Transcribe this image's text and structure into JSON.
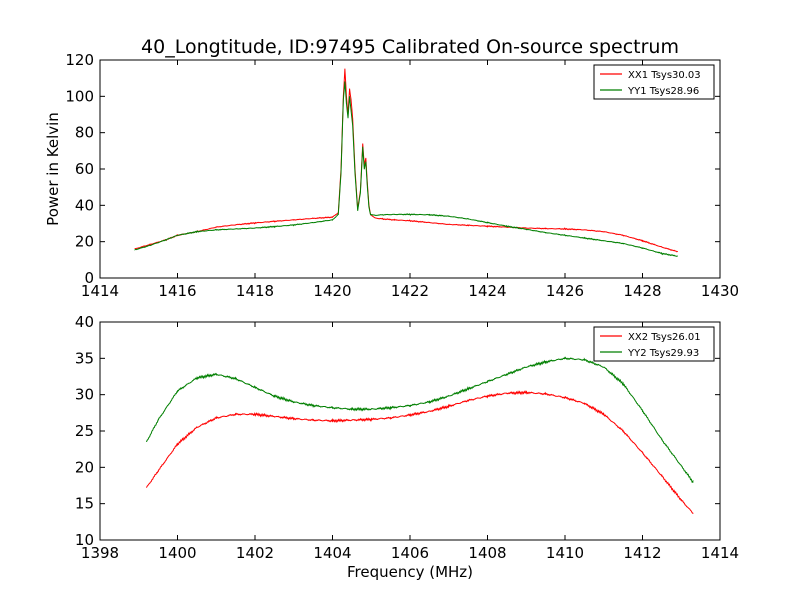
{
  "colors": {
    "xx": "#ff0000",
    "yy": "#007f00",
    "frame": "#000000",
    "background": "#ffffff"
  },
  "chart_data": [
    {
      "type": "line",
      "title": "40_Longtitude, ID:97495 Calibrated On-source spectrum",
      "xlabel": "",
      "ylabel": "Power in Kelvin",
      "xlim": [
        1414,
        1430
      ],
      "ylim": [
        0,
        120
      ],
      "xticks": [
        "1414",
        "1416",
        "1418",
        "1420",
        "1422",
        "1424",
        "1426",
        "1428",
        "1430"
      ],
      "yticks": [
        "0",
        "20",
        "40",
        "60",
        "80",
        "100",
        "120"
      ],
      "grid": false,
      "legend_position": "top-right",
      "series": [
        {
          "name": "XX1 Tsys30.03",
          "color": "#ff0000",
          "x": [
            1414.9,
            1415.3,
            1415.7,
            1416.0,
            1416.5,
            1417.0,
            1417.5,
            1418.0,
            1418.5,
            1419.0,
            1419.5,
            1420.0,
            1420.15,
            1420.22,
            1420.28,
            1420.32,
            1420.36,
            1420.4,
            1420.44,
            1420.48,
            1420.52,
            1420.58,
            1420.65,
            1420.72,
            1420.78,
            1420.82,
            1420.86,
            1420.9,
            1420.94,
            1420.98,
            1421.1,
            1421.3,
            1421.6,
            1422.0,
            1422.5,
            1423.0,
            1423.5,
            1424.0,
            1424.5,
            1425.0,
            1425.5,
            1426.0,
            1426.5,
            1427.0,
            1427.5,
            1428.0,
            1428.5,
            1428.9
          ],
          "y": [
            16,
            18.5,
            21,
            23.5,
            25.5,
            28,
            29.3,
            30.3,
            31.2,
            32,
            32.8,
            33.5,
            36,
            60,
            100,
            115,
            100,
            90,
            104,
            98,
            88,
            60,
            38,
            48,
            74,
            62,
            66,
            52,
            40,
            35,
            33,
            32.5,
            32,
            31.5,
            30.5,
            29.5,
            29,
            28.5,
            28,
            27.5,
            27.2,
            27,
            26.5,
            25.5,
            23.5,
            20.5,
            17,
            14.5
          ]
        },
        {
          "name": "YY1 Tsys28.96",
          "color": "#007f00",
          "x": [
            1414.9,
            1415.3,
            1415.7,
            1416.0,
            1416.5,
            1417.0,
            1417.5,
            1418.0,
            1418.5,
            1419.0,
            1419.5,
            1420.0,
            1420.15,
            1420.22,
            1420.28,
            1420.32,
            1420.36,
            1420.4,
            1420.44,
            1420.48,
            1420.52,
            1420.58,
            1420.65,
            1420.72,
            1420.78,
            1420.82,
            1420.86,
            1420.9,
            1420.94,
            1420.98,
            1421.1,
            1421.3,
            1421.6,
            1422.0,
            1422.5,
            1423.0,
            1423.5,
            1424.0,
            1424.5,
            1425.0,
            1425.5,
            1426.0,
            1426.5,
            1427.0,
            1427.5,
            1428.0,
            1428.5,
            1428.9
          ],
          "y": [
            15.5,
            18,
            21,
            23.5,
            25.5,
            26.5,
            27,
            27.5,
            28.3,
            29.2,
            30.5,
            32,
            35,
            58,
            98,
            108,
            96,
            88,
            100,
            92,
            84,
            58,
            37,
            47,
            72,
            60,
            64,
            50,
            39,
            35,
            34.5,
            34.8,
            35,
            35,
            34.8,
            34,
            32.5,
            30.5,
            28.5,
            26.8,
            25,
            23.5,
            22,
            20.5,
            19,
            16.5,
            13.5,
            12
          ]
        }
      ]
    },
    {
      "type": "line",
      "title": "",
      "xlabel": "Frequency (MHz)",
      "ylabel": "",
      "xlim": [
        1398,
        1414
      ],
      "ylim": [
        10,
        40
      ],
      "xticks": [
        "1398",
        "1400",
        "1402",
        "1404",
        "1406",
        "1408",
        "1410",
        "1412",
        "1414"
      ],
      "yticks": [
        "10",
        "15",
        "20",
        "25",
        "30",
        "35",
        "40"
      ],
      "grid": false,
      "legend_position": "top-right",
      "series": [
        {
          "name": "XX2 Tsys26.01",
          "color": "#ff0000",
          "x": [
            1399.2,
            1399.5,
            1400.0,
            1400.5,
            1401.0,
            1401.5,
            1402.0,
            1402.5,
            1403.0,
            1403.5,
            1404.0,
            1404.5,
            1405.0,
            1405.5,
            1406.0,
            1406.5,
            1407.0,
            1407.5,
            1408.0,
            1408.5,
            1409.0,
            1409.5,
            1410.0,
            1410.5,
            1411.0,
            1411.5,
            1412.0,
            1412.5,
            1413.0,
            1413.3
          ],
          "y": [
            17.2,
            19.5,
            23.2,
            25.5,
            26.8,
            27.3,
            27.3,
            27,
            26.7,
            26.5,
            26.4,
            26.5,
            26.6,
            26.8,
            27.2,
            27.7,
            28.4,
            29.2,
            29.8,
            30.2,
            30.3,
            30.1,
            29.6,
            28.8,
            27.3,
            25,
            22,
            18.8,
            15.5,
            13.7
          ]
        },
        {
          "name": "YY2 Tsys29.93",
          "color": "#007f00",
          "x": [
            1399.2,
            1399.5,
            1400.0,
            1400.5,
            1401.0,
            1401.5,
            1402.0,
            1402.5,
            1403.0,
            1403.5,
            1404.0,
            1404.5,
            1405.0,
            1405.5,
            1406.0,
            1406.5,
            1407.0,
            1407.5,
            1408.0,
            1408.5,
            1409.0,
            1409.5,
            1410.0,
            1410.5,
            1411.0,
            1411.5,
            1412.0,
            1412.5,
            1413.0,
            1413.3
          ],
          "y": [
            23.5,
            26.5,
            30.5,
            32.3,
            32.8,
            32.2,
            31,
            29.8,
            29,
            28.5,
            28.2,
            28,
            28,
            28.2,
            28.5,
            29,
            29.8,
            30.8,
            31.8,
            32.8,
            33.8,
            34.5,
            35,
            34.8,
            33.8,
            31.5,
            27.8,
            23.8,
            20.2,
            18
          ]
        }
      ]
    }
  ]
}
